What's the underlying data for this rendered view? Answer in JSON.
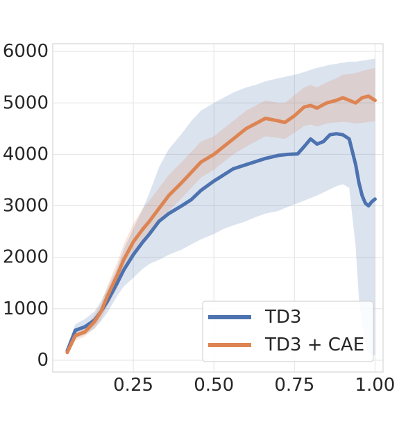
{
  "chart_data": {
    "type": "line",
    "title": "",
    "xlabel": "",
    "ylabel": "",
    "xlim": [
      0.0,
      1.025
    ],
    "ylim": [
      -230,
      6150
    ],
    "xticks": [
      0.25,
      0.5,
      0.75,
      1.0
    ],
    "xtick_labels": [
      "0.25",
      "0.50",
      "0.75",
      "1.00"
    ],
    "yticks": [
      0,
      1000,
      2000,
      3000,
      4000,
      5000,
      6000
    ],
    "ytick_labels": [
      "0",
      "1000",
      "2000",
      "3000",
      "4000",
      "5000",
      "6000"
    ],
    "grid": true,
    "legend_position": "lower right",
    "series": [
      {
        "name": "TD3",
        "color": "#4c72b0",
        "x": [
          0.045,
          0.07,
          0.1,
          0.13,
          0.15,
          0.17,
          0.2,
          0.22,
          0.25,
          0.28,
          0.3,
          0.33,
          0.36,
          0.4,
          0.43,
          0.46,
          0.5,
          0.53,
          0.56,
          0.6,
          0.63,
          0.66,
          0.7,
          0.73,
          0.76,
          0.78,
          0.8,
          0.82,
          0.84,
          0.86,
          0.88,
          0.9,
          0.92,
          0.94,
          0.95,
          0.96,
          0.97,
          0.98,
          0.99,
          1.0
        ],
        "values": [
          180,
          580,
          650,
          780,
          950,
          1150,
          1500,
          1750,
          2050,
          2300,
          2450,
          2700,
          2850,
          3000,
          3120,
          3300,
          3480,
          3600,
          3720,
          3800,
          3860,
          3920,
          3980,
          4000,
          4010,
          4150,
          4300,
          4200,
          4250,
          4380,
          4400,
          4380,
          4300,
          3800,
          3450,
          3200,
          3050,
          3000,
          3080,
          3130
        ],
        "lower": [
          130,
          420,
          500,
          620,
          760,
          930,
          1250,
          1430,
          1600,
          1780,
          1870,
          1950,
          2050,
          2150,
          2250,
          2350,
          2450,
          2550,
          2620,
          2700,
          2780,
          2850,
          2900,
          2980,
          3050,
          3100,
          3150,
          3200,
          3260,
          3320,
          3380,
          3420,
          3350,
          2200,
          1200,
          700,
          300,
          150,
          100,
          100
        ],
        "upper": [
          230,
          700,
          800,
          950,
          1150,
          1400,
          1800,
          2150,
          2550,
          2950,
          3250,
          3750,
          4100,
          4400,
          4650,
          4850,
          5000,
          5100,
          5200,
          5300,
          5350,
          5420,
          5480,
          5520,
          5560,
          5600,
          5640,
          5680,
          5710,
          5740,
          5760,
          5780,
          5800,
          5800,
          5810,
          5820,
          5830,
          5840,
          5850,
          5860
        ]
      },
      {
        "name": "TD3 + CAE",
        "color": "#dd8452",
        "x": [
          0.045,
          0.07,
          0.1,
          0.13,
          0.15,
          0.17,
          0.2,
          0.22,
          0.25,
          0.28,
          0.3,
          0.33,
          0.36,
          0.4,
          0.43,
          0.46,
          0.5,
          0.53,
          0.56,
          0.6,
          0.63,
          0.66,
          0.7,
          0.72,
          0.75,
          0.78,
          0.8,
          0.82,
          0.85,
          0.88,
          0.9,
          0.92,
          0.94,
          0.96,
          0.98,
          1.0
        ],
        "values": [
          150,
          480,
          550,
          750,
          950,
          1250,
          1650,
          1950,
          2300,
          2550,
          2700,
          2950,
          3200,
          3450,
          3650,
          3850,
          4000,
          4150,
          4300,
          4500,
          4600,
          4700,
          4650,
          4620,
          4750,
          4920,
          4950,
          4900,
          5000,
          5050,
          5100,
          5050,
          5000,
          5100,
          5130,
          5050
        ],
        "lower": [
          100,
          380,
          460,
          620,
          800,
          1050,
          1400,
          1700,
          2000,
          2250,
          2400,
          2650,
          2900,
          3150,
          3350,
          3550,
          3700,
          3850,
          4000,
          4150,
          4250,
          4350,
          4320,
          4300,
          4420,
          4550,
          4580,
          4540,
          4600,
          4620,
          4630,
          4620,
          4600,
          4610,
          4630,
          4640
        ],
        "upper": [
          200,
          580,
          640,
          880,
          1100,
          1450,
          1900,
          2250,
          2650,
          2950,
          3100,
          3350,
          3600,
          3850,
          4050,
          4250,
          4350,
          4500,
          4650,
          4850,
          4950,
          5050,
          5000,
          5000,
          5150,
          5300,
          5350,
          5300,
          5400,
          5480,
          5550,
          5560,
          5580,
          5620,
          5650,
          5680
        ]
      }
    ]
  }
}
